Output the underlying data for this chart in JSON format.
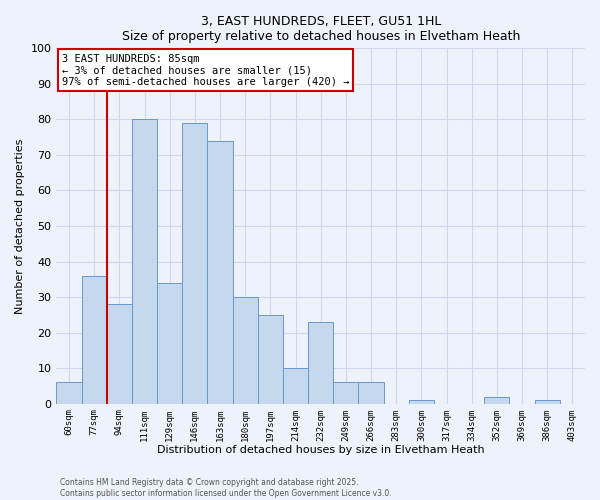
{
  "title": "3, EAST HUNDREDS, FLEET, GU51 1HL",
  "subtitle": "Size of property relative to detached houses in Elvetham Heath",
  "xlabel": "Distribution of detached houses by size in Elvetham Heath",
  "ylabel": "Number of detached properties",
  "bar_labels": [
    "60sqm",
    "77sqm",
    "94sqm",
    "111sqm",
    "129sqm",
    "146sqm",
    "163sqm",
    "180sqm",
    "197sqm",
    "214sqm",
    "232sqm",
    "249sqm",
    "266sqm",
    "283sqm",
    "300sqm",
    "317sqm",
    "334sqm",
    "352sqm",
    "369sqm",
    "386sqm",
    "403sqm"
  ],
  "bar_values": [
    6,
    36,
    28,
    80,
    34,
    79,
    74,
    30,
    25,
    10,
    23,
    6,
    6,
    0,
    1,
    0,
    0,
    2,
    0,
    1,
    0
  ],
  "bar_color": "#c5d8ed",
  "bar_edge_color": "#6699cc",
  "annotation_title": "3 EAST HUNDREDS: 85sqm",
  "annotation_line1": "← 3% of detached houses are smaller (15)",
  "annotation_line2": "97% of semi-detached houses are larger (420) →",
  "vline_color": "#cc0000",
  "annotation_box_color": "#cc0000",
  "ylim": [
    0,
    100
  ],
  "yticks": [
    0,
    10,
    20,
    30,
    40,
    50,
    60,
    70,
    80,
    90,
    100
  ],
  "footer_line1": "Contains HM Land Registry data © Crown copyright and database right 2025.",
  "footer_line2": "Contains public sector information licensed under the Open Government Licence v3.0.",
  "bg_color": "#eef2fb",
  "grid_color": "#d0d8ee"
}
